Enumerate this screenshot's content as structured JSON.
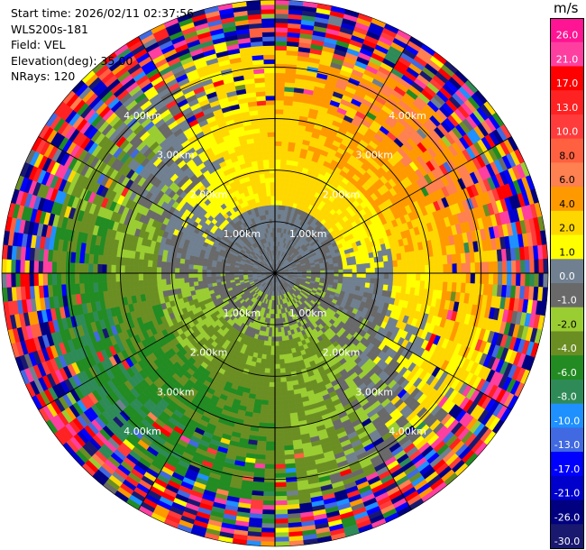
{
  "header": {
    "start_time": "Start time: 2026/02/11 02:37:56",
    "instrument": "WLS200s-181",
    "field": "Field: VEL",
    "elevation": "Elevation(deg): 35.00",
    "nrays": "NRays: 120"
  },
  "colorbar": {
    "unit": "m/s",
    "labels": [
      "26.0",
      "21.0",
      "17.0",
      "13.0",
      "10.0",
      "8.0",
      "6.0",
      "4.0",
      "2.0",
      "1.0",
      "0.0",
      "-1.0",
      "-2.0",
      "-4.0",
      "-6.0",
      "-8.0",
      "-10.0",
      "-13.0",
      "-17.0",
      "-21.0",
      "-26.0",
      "-30.0"
    ],
    "colors": [
      "#ff1493",
      "#ff3fa0",
      "#ff0000",
      "#ff2222",
      "#ff3b3b",
      "#ff6040",
      "#ff8050",
      "#ff9900",
      "#ffd700",
      "#ffff00",
      "#708090",
      "#696969",
      "#9acd32",
      "#6b8e23",
      "#228b22",
      "#2e8b57",
      "#1e90ff",
      "#4169e1",
      "#0000ff",
      "#0000cd",
      "#000080",
      "#191970"
    ]
  },
  "chart_data": {
    "type": "heatmap",
    "projection": "polar PPI",
    "field": "VEL",
    "units": "m/s",
    "nrays": 120,
    "elevation_deg": 35.0,
    "range_rings_km": [
      1.0,
      2.0,
      3.0,
      4.0
    ],
    "ring_labels": [
      "1.00km",
      "2.00km",
      "3.00km",
      "4.00km"
    ],
    "max_range_km": 5.3,
    "value_range": [
      -30.0,
      26.0
    ],
    "pattern_summary": {
      "north_half_inner": "+1 to +4 m/s (yellow/gold) beyond ~1.5 km, near 0 in center",
      "south_half_inner": "-1 to -4 m/s (green/olive)",
      "east_mid": "+4 to +8 m/s (orange)",
      "west_mid": "-2 to -6 m/s (green)",
      "outer_ring": "noisy / folded values at all colors"
    }
  }
}
